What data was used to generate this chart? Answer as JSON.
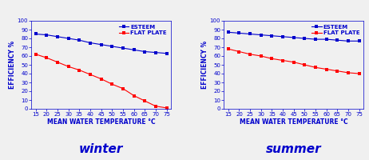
{
  "x": [
    15,
    20,
    25,
    30,
    35,
    40,
    45,
    50,
    55,
    60,
    65,
    70,
    75
  ],
  "winter_esteem": [
    85,
    84,
    82,
    80,
    78,
    75,
    73,
    71,
    69,
    67,
    65,
    64,
    63
  ],
  "winter_flatplate": [
    62,
    58,
    53,
    48,
    44,
    39,
    34,
    28,
    23,
    15,
    9,
    3,
    1
  ],
  "summer_esteem": [
    87,
    86,
    85,
    84,
    83,
    82,
    81,
    80,
    79,
    79,
    78,
    77,
    77
  ],
  "summer_flatplate": [
    68,
    65,
    62,
    60,
    57,
    55,
    53,
    50,
    47,
    45,
    43,
    41,
    40
  ],
  "esteem_color": "#0000CC",
  "flatplate_color": "#FF0000",
  "axis_label_color": "#0000CC",
  "seasons": [
    "winter",
    "summer"
  ],
  "ylabel": "EFFICIENCY %",
  "xlabel": "MEAN WATER TEMPERATURE °C",
  "legend_esteem": "ESTEEM",
  "legend_flatplate": "FLAT PLATE",
  "ylim": [
    0,
    100
  ],
  "xlim": [
    13,
    77
  ],
  "xticks": [
    15,
    20,
    25,
    30,
    35,
    40,
    45,
    50,
    55,
    60,
    65,
    70,
    75
  ],
  "yticks": [
    0,
    10,
    20,
    30,
    40,
    50,
    60,
    70,
    80,
    90,
    100
  ],
  "background_color": "#F0F0F0",
  "title_fontsize": 11,
  "label_fontsize": 5.5,
  "tick_fontsize": 5.0,
  "legend_fontsize": 5.0,
  "linewidth": 0.8,
  "markersize": 2.2
}
